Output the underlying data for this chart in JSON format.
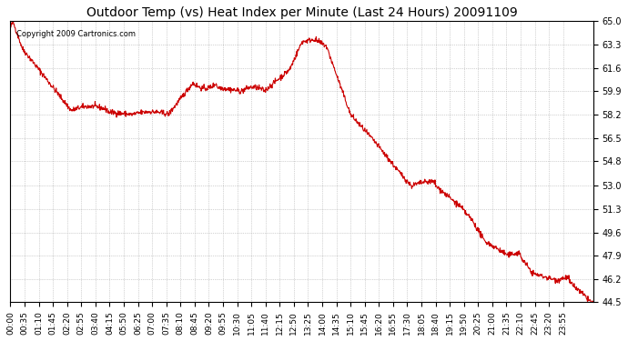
{
  "title": "Outdoor Temp (vs) Heat Index per Minute (Last 24 Hours) 20091109",
  "copyright_text": "Copyright 2009 Cartronics.com",
  "line_color": "#cc0000",
  "background_color": "#ffffff",
  "grid_color": "#aaaaaa",
  "ylim": [
    44.5,
    65.0
  ],
  "yticks": [
    44.5,
    46.2,
    47.9,
    49.6,
    51.3,
    53.0,
    54.8,
    56.5,
    58.2,
    59.9,
    61.6,
    63.3,
    65.0
  ],
  "xtick_labels": [
    "00:00",
    "00:35",
    "01:10",
    "01:45",
    "02:20",
    "02:55",
    "03:40",
    "04:15",
    "05:50",
    "06:25",
    "07:00",
    "07:35",
    "08:10",
    "08:45",
    "09:20",
    "09:55",
    "10:30",
    "11:05",
    "11:40",
    "12:15",
    "12:50",
    "13:25",
    "14:00",
    "14:35",
    "15:10",
    "15:45",
    "16:20",
    "16:55",
    "17:30",
    "18:05",
    "18:40",
    "19:15",
    "19:50",
    "20:25",
    "21:00",
    "21:35",
    "22:10",
    "22:45",
    "23:20",
    "23:55"
  ]
}
